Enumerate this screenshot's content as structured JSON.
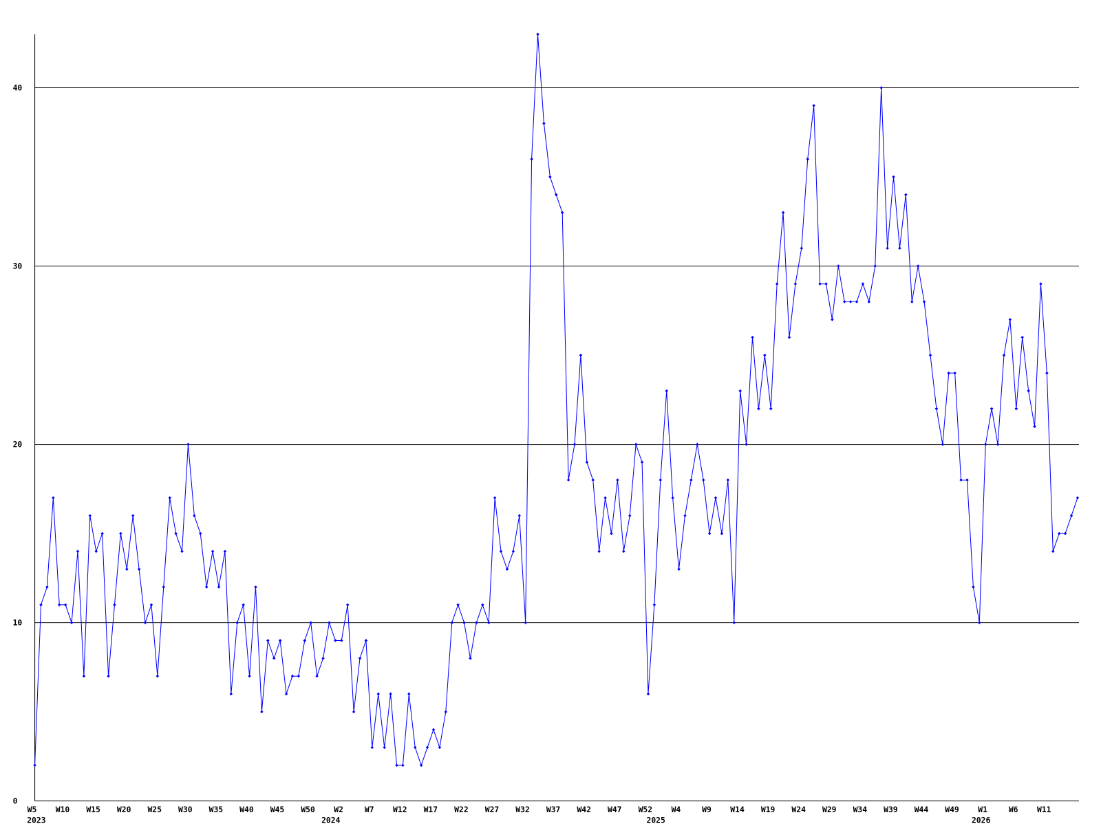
{
  "chart_data": {
    "type": "line",
    "ylim": [
      0,
      43
    ],
    "yticks": [
      0,
      10,
      20,
      30,
      40
    ],
    "grid": true,
    "categories": [
      "W5",
      null,
      null,
      null,
      null,
      "W10",
      null,
      null,
      null,
      null,
      "W15",
      null,
      null,
      null,
      null,
      "W20",
      null,
      null,
      null,
      null,
      "W25",
      null,
      null,
      null,
      null,
      "W30",
      null,
      null,
      null,
      null,
      "W35",
      null,
      null,
      null,
      null,
      "W40",
      null,
      null,
      null,
      null,
      "W45",
      null,
      null,
      null,
      null,
      "W50",
      null,
      null,
      null,
      null,
      "W2",
      null,
      null,
      null,
      null,
      "W7",
      null,
      null,
      null,
      null,
      "W12",
      null,
      null,
      null,
      null,
      "W17",
      null,
      null,
      null,
      null,
      "W22",
      null,
      null,
      null,
      null,
      "W27",
      null,
      null,
      null,
      null,
      "W32",
      null,
      null,
      null,
      null,
      "W37",
      null,
      null,
      null,
      null,
      "W42",
      null,
      null,
      null,
      null,
      "W47",
      null,
      null,
      null,
      null,
      "W52",
      null,
      null,
      null,
      null,
      "W4",
      null,
      null,
      null,
      null,
      "W9",
      null,
      null,
      null,
      null,
      "W14",
      null,
      null,
      null,
      null,
      "W19",
      null,
      null,
      null,
      null,
      "W24",
      null,
      null,
      null,
      null,
      "W29",
      null,
      null,
      null,
      null,
      "W34",
      null,
      null,
      null,
      null,
      "W39",
      null,
      null,
      null,
      null,
      "W44",
      null,
      null,
      null,
      null,
      "W49",
      null,
      null,
      null,
      null,
      "W1",
      null,
      null,
      null,
      null,
      "W6",
      null,
      null,
      null,
      null,
      "W11",
      null,
      null,
      null,
      null,
      null
    ],
    "year_labels": [
      "2023",
      null,
      null,
      null,
      null,
      null,
      null,
      null,
      null,
      null,
      null,
      null,
      null,
      null,
      null,
      null,
      null,
      null,
      null,
      null,
      null,
      null,
      null,
      null,
      null,
      null,
      null,
      null,
      null,
      null,
      null,
      null,
      null,
      null,
      null,
      null,
      null,
      null,
      null,
      null,
      null,
      null,
      null,
      null,
      null,
      null,
      null,
      null,
      "2024",
      null,
      null,
      null,
      null,
      null,
      null,
      null,
      null,
      null,
      null,
      null,
      null,
      null,
      null,
      null,
      null,
      null,
      null,
      null,
      null,
      null,
      null,
      null,
      null,
      null,
      null,
      null,
      null,
      null,
      null,
      null,
      null,
      null,
      null,
      null,
      null,
      null,
      null,
      null,
      null,
      null,
      null,
      null,
      null,
      null,
      null,
      null,
      null,
      null,
      null,
      null,
      null,
      "2025",
      null,
      null,
      null,
      null,
      null,
      null,
      null,
      null,
      null,
      null,
      null,
      null,
      null,
      null,
      null,
      null,
      null,
      null,
      null,
      null,
      null,
      null,
      null,
      null,
      null,
      null,
      null,
      null,
      null,
      null,
      null,
      null,
      null,
      null,
      null,
      null,
      null,
      null,
      null,
      null,
      null,
      null,
      null,
      null,
      null,
      null,
      null,
      null,
      null,
      null,
      null,
      null,
      "2026",
      null,
      null,
      null,
      null,
      null,
      null,
      null,
      null,
      null,
      null,
      null,
      null,
      null,
      null,
      null,
      null
    ],
    "series": [
      {
        "color": "#0000ff",
        "values": [
          2,
          11,
          12,
          17,
          11,
          11,
          10,
          14,
          7,
          16,
          14,
          15,
          7,
          11,
          15,
          13,
          16,
          13,
          10,
          11,
          7,
          12,
          17,
          15,
          14,
          20,
          16,
          15,
          12,
          14,
          12,
          14,
          6,
          10,
          11,
          7,
          12,
          5,
          9,
          8,
          9,
          6,
          7,
          7,
          9,
          10,
          7,
          8,
          10,
          9,
          9,
          11,
          5,
          8,
          9,
          3,
          6,
          3,
          6,
          2,
          2,
          6,
          3,
          2,
          3,
          4,
          3,
          5,
          10,
          11,
          10,
          8,
          10,
          11,
          10,
          17,
          14,
          13,
          14,
          16,
          10,
          36,
          43,
          38,
          35,
          34,
          33,
          18,
          20,
          25,
          19,
          18,
          14,
          17,
          15,
          18,
          14,
          16,
          20,
          19,
          6,
          11,
          18,
          23,
          17,
          13,
          16,
          18,
          20,
          18,
          15,
          17,
          15,
          18,
          10,
          23,
          20,
          26,
          22,
          25,
          22,
          29,
          33,
          26,
          29,
          31,
          36,
          39,
          29,
          29,
          27,
          30,
          28,
          28,
          28,
          29,
          28,
          30,
          40,
          31,
          35,
          31,
          34,
          28,
          30,
          28,
          25,
          22,
          20,
          24,
          24,
          18,
          18,
          12,
          10,
          20,
          22,
          20,
          25,
          27,
          22,
          26,
          23,
          21,
          29,
          24,
          14,
          15,
          15,
          16,
          17
        ]
      }
    ]
  }
}
